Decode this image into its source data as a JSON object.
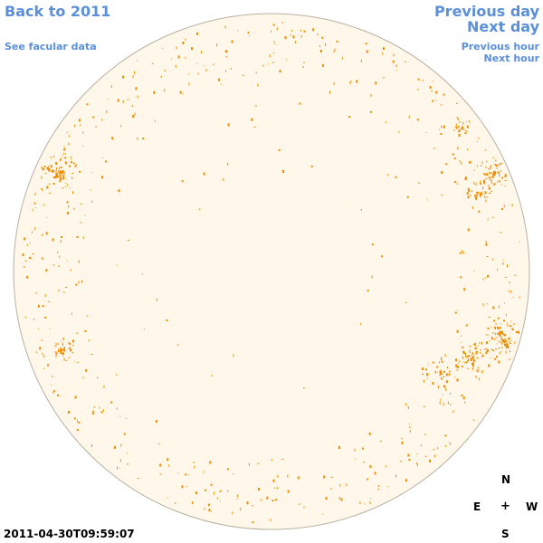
{
  "nav": {
    "back_year": "Back to 2011",
    "facular": "See facular data",
    "prev_day": "Previous day",
    "next_day": "Next day",
    "prev_hour": "Previous hour",
    "next_hour": "Next hour"
  },
  "compass": {
    "n": "N",
    "e": "E",
    "center": "+",
    "w": "W",
    "s": "S"
  },
  "timestamp": "2011-04-30T09:59:07",
  "colors": {
    "disk_fill": "#fff8ea",
    "disk_edge": "#b8b0a0",
    "feature": "#f08c00",
    "link": "#5b8fd9"
  }
}
